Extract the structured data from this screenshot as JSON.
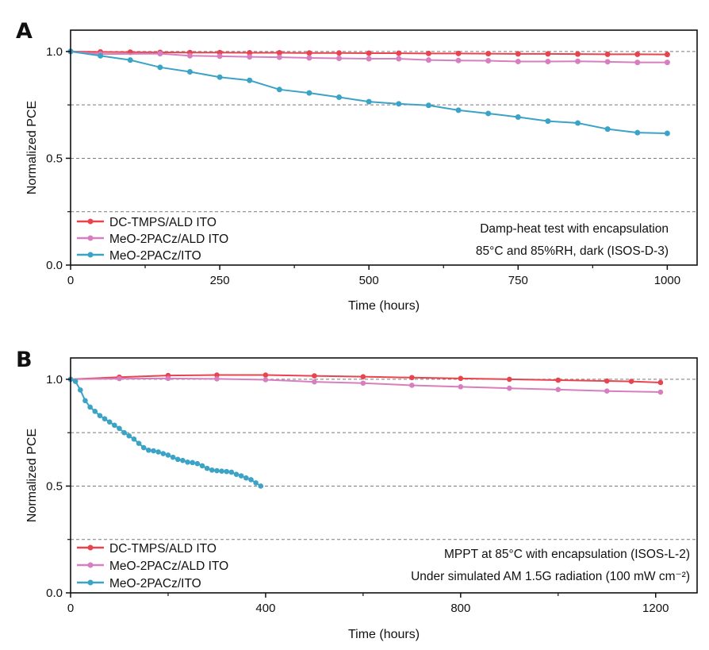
{
  "colors": {
    "dc": "#e8444f",
    "meoAld": "#d77fbe",
    "meoIto": "#3aa3c6",
    "grid": "#7a7a7a",
    "axis": "#111111"
  },
  "chart_data": [
    {
      "panel": "A",
      "type": "line",
      "xlabel": "Time (hours)",
      "ylabel": "Normalized PCE",
      "xlim": [
        0,
        1050
      ],
      "ylim": [
        0,
        1.1
      ],
      "xticks": [
        0,
        250,
        500,
        750,
        1000
      ],
      "xtick_labels": [
        "0",
        "250",
        "500",
        "750",
        "1000"
      ],
      "yticks": [
        0,
        0.5,
        1.0
      ],
      "ytick_labels": [
        "0.0",
        "0.5",
        "1.0"
      ],
      "grid_y": [
        0.25,
        0.5,
        0.75,
        1.0
      ],
      "legend_position": "bottom-left",
      "annotations": [
        "Damp-heat test with encapsulation",
        "85°C and 85%RH, dark (ISOS-D-3)"
      ],
      "series": [
        {
          "name": "DC-TMPS/ALD ITO",
          "color_key": "dc",
          "x": [
            0,
            50,
            100,
            150,
            200,
            250,
            300,
            350,
            400,
            450,
            500,
            550,
            600,
            650,
            700,
            750,
            800,
            850,
            900,
            950,
            1000
          ],
          "y": [
            1.0,
            0.998,
            0.997,
            0.996,
            0.995,
            0.995,
            0.994,
            0.994,
            0.993,
            0.993,
            0.992,
            0.992,
            0.991,
            0.991,
            0.99,
            0.989,
            0.989,
            0.988,
            0.987,
            0.987,
            0.986
          ]
        },
        {
          "name": "MeO-2PACz/ALD ITO",
          "color_key": "meoAld",
          "x": [
            0,
            50,
            150,
            200,
            250,
            300,
            350,
            400,
            450,
            500,
            550,
            600,
            650,
            700,
            750,
            800,
            850,
            900,
            950,
            1000
          ],
          "y": [
            1.0,
            0.988,
            0.99,
            0.98,
            0.978,
            0.975,
            0.973,
            0.97,
            0.968,
            0.966,
            0.966,
            0.96,
            0.958,
            0.957,
            0.953,
            0.953,
            0.954,
            0.952,
            0.949,
            0.949
          ]
        },
        {
          "name": "MeO-2PACz/ITO",
          "color_key": "meoIto",
          "x": [
            0,
            50,
            100,
            150,
            200,
            250,
            300,
            350,
            400,
            450,
            500,
            550,
            600,
            650,
            700,
            750,
            800,
            850,
            900,
            950,
            1000
          ],
          "y": [
            1.0,
            0.98,
            0.96,
            0.926,
            0.905,
            0.88,
            0.865,
            0.822,
            0.806,
            0.786,
            0.765,
            0.755,
            0.748,
            0.725,
            0.71,
            0.693,
            0.674,
            0.665,
            0.637,
            0.62,
            0.617
          ]
        }
      ]
    },
    {
      "panel": "B",
      "type": "line",
      "xlabel": "Time (hours)",
      "ylabel": "Normalized PCE",
      "xlim": [
        0,
        1285
      ],
      "ylim": [
        0,
        1.1
      ],
      "xticks": [
        0,
        400,
        800,
        1200
      ],
      "xtick_labels": [
        "0",
        "400",
        "800",
        "1200"
      ],
      "yticks": [
        0,
        0.5,
        1.0
      ],
      "ytick_labels": [
        "0.0",
        "0.5",
        "1.0"
      ],
      "grid_y": [
        0.25,
        0.5,
        0.75,
        1.0
      ],
      "legend_position": "bottom-left",
      "annotations": [
        "MPPT at 85°C with encapsulation (ISOS-L-2)",
        "Under simulated AM 1.5G radiation (100 mW cm⁻²)"
      ],
      "series": [
        {
          "name": "DC-TMPS/ALD ITO",
          "color_key": "dc",
          "x": [
            0,
            100,
            200,
            300,
            400,
            500,
            600,
            700,
            800,
            900,
            1000,
            1100,
            1150,
            1210
          ],
          "y": [
            1.0,
            1.01,
            1.018,
            1.02,
            1.02,
            1.016,
            1.012,
            1.008,
            1.004,
            1.0,
            0.996,
            0.992,
            0.99,
            0.985
          ]
        },
        {
          "name": "MeO-2PACz/ALD ITO",
          "color_key": "meoAld",
          "x": [
            0,
            100,
            200,
            300,
            400,
            500,
            600,
            700,
            800,
            900,
            1000,
            1100,
            1210
          ],
          "y": [
            1.0,
            1.003,
            1.004,
            1.002,
            0.998,
            0.988,
            0.982,
            0.972,
            0.965,
            0.958,
            0.952,
            0.945,
            0.94
          ]
        },
        {
          "name": "MeO-2PACz/ITO",
          "color_key": "meoIto",
          "x": [
            0,
            10,
            20,
            30,
            40,
            50,
            60,
            70,
            80,
            90,
            100,
            110,
            120,
            130,
            140,
            150,
            160,
            170,
            180,
            190,
            200,
            210,
            220,
            230,
            240,
            250,
            260,
            270,
            280,
            290,
            300,
            310,
            320,
            330,
            340,
            350,
            360,
            370,
            380,
            390
          ],
          "y": [
            1.0,
            0.99,
            0.95,
            0.9,
            0.87,
            0.85,
            0.83,
            0.815,
            0.8,
            0.785,
            0.77,
            0.75,
            0.735,
            0.72,
            0.7,
            0.68,
            0.668,
            0.665,
            0.66,
            0.652,
            0.645,
            0.635,
            0.625,
            0.62,
            0.612,
            0.61,
            0.605,
            0.595,
            0.583,
            0.575,
            0.572,
            0.57,
            0.568,
            0.565,
            0.555,
            0.548,
            0.538,
            0.53,
            0.515,
            0.5
          ]
        }
      ]
    }
  ]
}
